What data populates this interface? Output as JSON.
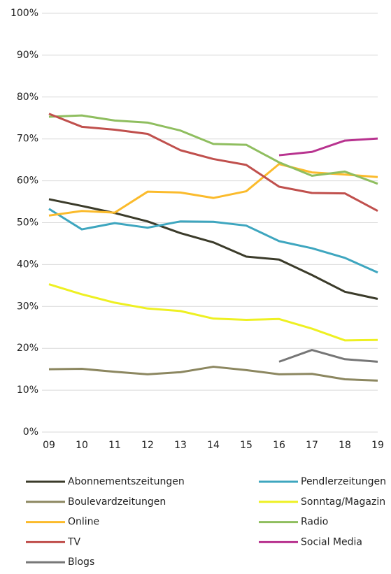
{
  "chart_data": {
    "type": "line",
    "categories": [
      "09",
      "10",
      "11",
      "12",
      "13",
      "14",
      "15",
      "16",
      "17",
      "18",
      "19"
    ],
    "ylim": [
      0,
      100
    ],
    "yticks": [
      {
        "value": 0,
        "label": "0%"
      },
      {
        "value": 10,
        "label": "10%"
      },
      {
        "value": 20,
        "label": "20%"
      },
      {
        "value": 30,
        "label": "30%"
      },
      {
        "value": 40,
        "label": "40%"
      },
      {
        "value": 50,
        "label": "50%"
      },
      {
        "value": 60,
        "label": "60%"
      },
      {
        "value": 70,
        "label": "70%"
      },
      {
        "value": 80,
        "label": "80%"
      },
      {
        "value": 90,
        "label": "90%"
      },
      {
        "value": 100,
        "label": "100%"
      }
    ],
    "grid": true,
    "series": [
      {
        "name": "Abonnementszeitungen",
        "color": "#3b3b2a",
        "values": [
          55.6,
          54,
          52.3,
          50.3,
          47.5,
          45.3,
          41.9,
          41.2,
          37.5,
          33.5,
          31.8
        ]
      },
      {
        "name": "Pendlerzeitungen",
        "color": "#3ea6bf",
        "values": [
          53.3,
          48.4,
          49.9,
          48.8,
          50.3,
          50.2,
          49.3,
          45.6,
          43.9,
          41.6,
          38.1
        ]
      },
      {
        "name": "Boulevardzeitungen",
        "color": "#8c8760",
        "values": [
          15,
          15.1,
          14.4,
          13.8,
          14.3,
          15.6,
          14.8,
          13.8,
          13.9,
          12.6,
          12.3
        ]
      },
      {
        "name": "Sonntag/Magazin",
        "color": "#eef022",
        "values": [
          35.3,
          32.9,
          30.9,
          29.5,
          28.9,
          27.1,
          26.8,
          27.0,
          24.7,
          21.9,
          22.0
        ]
      },
      {
        "name": "Online",
        "color": "#fbbb2c",
        "values": [
          51.7,
          52.8,
          52.4,
          57.4,
          57.2,
          55.9,
          57.5,
          64.0,
          62,
          61.5,
          60.9
        ]
      },
      {
        "name": "Radio",
        "color": "#8fbe5f",
        "values": [
          75.3,
          75.6,
          74.4,
          73.9,
          72,
          68.8,
          68.6,
          64.4,
          61.2,
          62.2,
          59.3
        ]
      },
      {
        "name": "TV",
        "color": "#c0504d",
        "values": [
          76,
          72.9,
          72.2,
          71.2,
          67.3,
          65.2,
          63.8,
          58.6,
          57.1,
          57.0,
          52.8
        ]
      },
      {
        "name": "Social Media",
        "color": "#b8338f",
        "values": [
          null,
          null,
          null,
          null,
          null,
          null,
          null,
          66.1,
          66.9,
          69.6,
          70.1
        ]
      },
      {
        "name": "Blogs",
        "color": "#767676",
        "values": [
          null,
          null,
          null,
          null,
          null,
          null,
          null,
          16.8,
          19.6,
          17.4,
          16.8
        ]
      }
    ]
  }
}
